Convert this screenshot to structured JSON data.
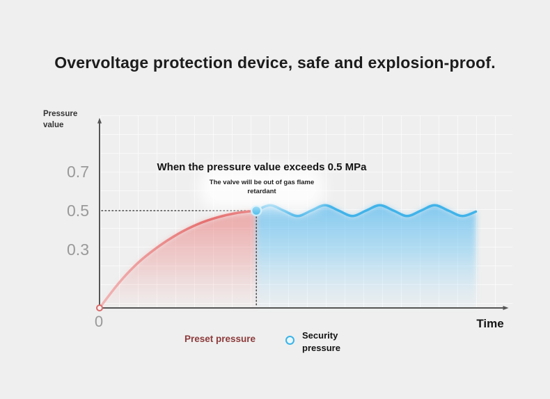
{
  "title": "Overvoltage protection device, safe and explosion-proof.",
  "chart": {
    "y_axis_label": "Pressure value",
    "x_axis_label": "Time",
    "origin_label": "0",
    "y_ticks": [
      "0.7",
      "0.5",
      "0.3"
    ],
    "annotation_main": "When the pressure value exceeds 0.5 MPa",
    "annotation_sub": "The valve will be out of gas flame retardant",
    "legend": {
      "preset": "Preset pressure",
      "security": "Security pressure"
    }
  },
  "colors": {
    "background": "#efefef",
    "preset_line": "#df4b4b",
    "preset_fill": "#ec8282",
    "security_line": "#3ab4e8",
    "security_fill": "#6ec6f4",
    "legend_preset_text": "#8d3a3a",
    "axis": "#555555",
    "tick_text": "#999999"
  },
  "chart_data": {
    "type": "line",
    "title": "Overvoltage protection device, safe and explosion-proof.",
    "xlabel": "Time",
    "ylabel": "Pressure value",
    "yticks": [
      0.3,
      0.5,
      0.7
    ],
    "ylim": [
      0,
      0.8
    ],
    "threshold": {
      "x": 4.0,
      "y": 0.5,
      "unit": "MPa",
      "label": "When the pressure value exceeds 0.5 MPa"
    },
    "series": [
      {
        "name": "Preset pressure",
        "color": "#df4b4b",
        "x": [
          0,
          0.5,
          1.0,
          1.5,
          2.0,
          2.5,
          3.0,
          3.5,
          4.0
        ],
        "y": [
          0,
          0.13,
          0.235,
          0.315,
          0.38,
          0.43,
          0.465,
          0.488,
          0.5
        ]
      },
      {
        "name": "Security pressure",
        "color": "#3ab4e8",
        "x": [
          4.0,
          4.35,
          4.7,
          5.05,
          5.4,
          5.75,
          6.1,
          6.45,
          6.8,
          7.15,
          7.5,
          7.85,
          8.2,
          8.55,
          8.9,
          9.25,
          9.6
        ],
        "y": [
          0.5,
          0.528,
          0.5,
          0.472,
          0.5,
          0.528,
          0.5,
          0.472,
          0.5,
          0.528,
          0.5,
          0.472,
          0.5,
          0.528,
          0.5,
          0.472,
          0.495
        ]
      }
    ],
    "annotations": [
      "When the pressure value exceeds 0.5 MPa",
      "The valve will be out of gas flame retardant"
    ],
    "legend_position": "bottom"
  }
}
